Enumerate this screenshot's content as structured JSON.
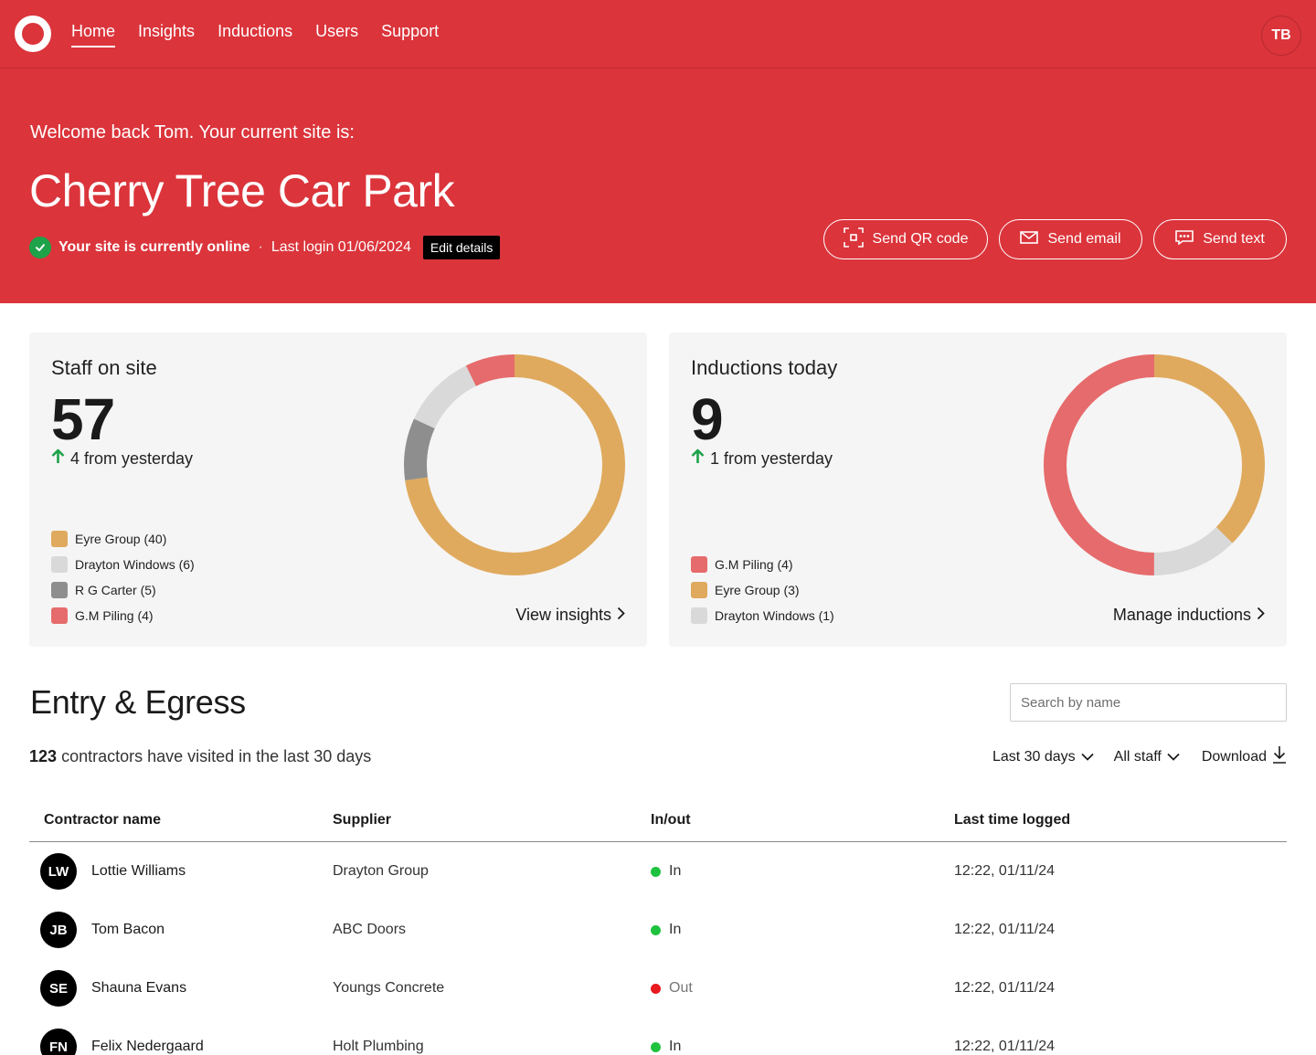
{
  "nav": {
    "links": [
      {
        "label": "Home",
        "active": true
      },
      {
        "label": "Insights",
        "active": false
      },
      {
        "label": "Inductions",
        "active": false
      },
      {
        "label": "Users",
        "active": false
      },
      {
        "label": "Support",
        "active": false
      }
    ],
    "user_initials": "TB"
  },
  "hero": {
    "welcome": "Welcome back Tom. Your current site is:",
    "site_name": "Cherry Tree Car Park",
    "status_online": "Your site is currently online",
    "separator": "·",
    "last_login": "Last login 01/06/2024",
    "edit_label": "Edit details",
    "buttons": {
      "qr": "Send QR code",
      "email": "Send email",
      "text": "Send text"
    }
  },
  "colors": {
    "brand_red": "#db343b",
    "online_green": "#1ea24a",
    "in_green": "#1ec23f",
    "out_red": "#e8191f"
  },
  "staff_card": {
    "title": "Staff on site",
    "count": "57",
    "delta": "4 from yesterday",
    "link": "View insights",
    "legend": [
      {
        "label": "Eyre Group (40)",
        "value": 40,
        "color": "#dfaa5e"
      },
      {
        "label": "Drayton Windows (6)",
        "value": 6,
        "color": "#d9d9d9"
      },
      {
        "label": "R G Carter (5)",
        "value": 5,
        "color": "#8e8e8e"
      },
      {
        "label": "G.M Piling (4)",
        "value": 4,
        "color": "#e66b6c"
      }
    ]
  },
  "inductions_card": {
    "title": "Inductions today",
    "count": "9",
    "delta": "1 from yesterday",
    "link": "Manage inductions",
    "legend": [
      {
        "label": "G.M Piling (4)",
        "value": 4,
        "color": "#e66b6c"
      },
      {
        "label": "Eyre Group (3)",
        "value": 3,
        "color": "#dfaa5e"
      },
      {
        "label": "Drayton Windows (1)",
        "value": 1,
        "color": "#d9d9d9"
      }
    ]
  },
  "entry": {
    "title": "Entry & Egress",
    "search_placeholder": "Search by name",
    "summary_count": "123",
    "summary_text": "contractors have visited in the last 30 days",
    "filters": {
      "range": "Last 30 days",
      "staff": "All staff",
      "download": "Download"
    },
    "columns": [
      "Contractor name",
      "Supplier",
      "In/out",
      "Last time logged"
    ],
    "rows": [
      {
        "initials": "LW",
        "name": "Lottie Williams",
        "supplier": "Drayton Group",
        "status": "In",
        "logged": "12:22, 01/11/24"
      },
      {
        "initials": "JB",
        "name": "Tom Bacon",
        "supplier": "ABC Doors",
        "status": "In",
        "logged": "12:22, 01/11/24"
      },
      {
        "initials": "SE",
        "name": "Shauna Evans",
        "supplier": "Youngs Concrete",
        "status": "Out",
        "logged": "12:22, 01/11/24"
      },
      {
        "initials": "FN",
        "name": "Felix Nedergaard",
        "supplier": "Holt Plumbing",
        "status": "In",
        "logged": "12:22, 01/11/24"
      }
    ]
  }
}
